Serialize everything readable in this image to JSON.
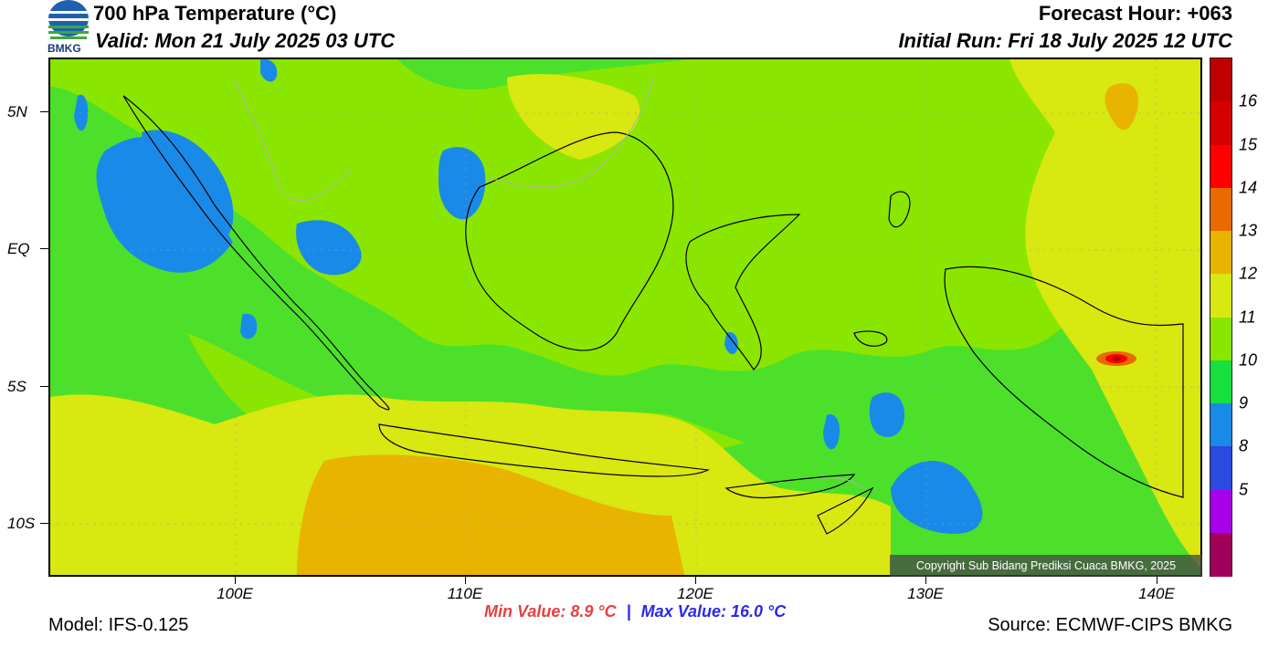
{
  "header": {
    "title": "700 hPa Temperature (°C)",
    "valid": "Valid: Mon 21 July 2025 03 UTC",
    "forecast_hour": "Forecast Hour: +063",
    "initial_run": "Initial Run: Fri 18 July 2025 12 UTC",
    "logo_text": "BMKG"
  },
  "map": {
    "lat_labels": [
      "5N",
      "EQ",
      "5S",
      "10S"
    ],
    "lon_labels": [
      "100E",
      "110E",
      "120E",
      "130E",
      "140E"
    ],
    "copyright": "Copyright Sub Bidang Prediksi Cuaca BMKG, 2025"
  },
  "colorbar": {
    "labels": [
      "16",
      "15",
      "14",
      "13",
      "12",
      "11",
      "10",
      "9",
      "8",
      "5"
    ],
    "colors": [
      "#c00000",
      "#d60000",
      "#ff0000",
      "#e86a00",
      "#e8b400",
      "#d8e810",
      "#8ae600",
      "#15e040",
      "#1a8ae8",
      "#2a4ae0",
      "#a800e8",
      "#a0005a"
    ]
  },
  "footer": {
    "model": "Model: IFS-0.125",
    "min_value": "Min Value: 8.9 °C",
    "separator": "|",
    "max_value": "Max Value: 16.0 °C",
    "source": "Source: ECMWF-CIPS BMKG"
  }
}
